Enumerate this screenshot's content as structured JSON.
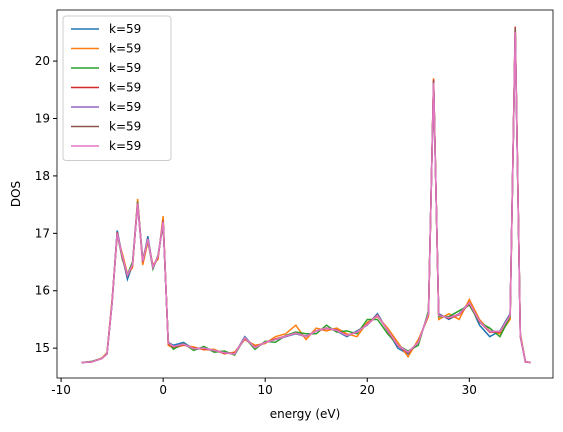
{
  "chart_data": {
    "type": "line",
    "xlabel": "energy (eV)",
    "ylabel": "DOS",
    "xlim": [
      -10.4,
      38.2
    ],
    "ylim": [
      14.48,
      20.89
    ],
    "xticks": [
      -10,
      0,
      10,
      20,
      30
    ],
    "yticks": [
      15,
      16,
      17,
      18,
      19,
      20
    ],
    "grid": false,
    "legend": "upper left",
    "x": [
      -8,
      -7,
      -6,
      -5.5,
      -5,
      -4.5,
      -4,
      -3.5,
      -3,
      -2.5,
      -2,
      -1.5,
      -1,
      -0.5,
      0,
      0.5,
      1,
      2,
      3,
      4,
      5,
      6,
      7,
      8,
      9,
      10,
      11,
      12,
      13,
      14,
      15,
      16,
      17,
      18,
      19,
      20,
      21,
      22,
      23,
      24,
      25,
      26,
      26.5,
      27,
      28,
      29,
      30,
      31,
      32,
      33,
      34,
      34.5,
      35,
      35.5,
      36
    ],
    "series": [
      {
        "name": "k=59",
        "color": "#1f77b4",
        "values": [
          14.75,
          14.76,
          14.82,
          14.9,
          15.8,
          17.05,
          16.6,
          16.2,
          16.45,
          17.5,
          16.5,
          16.95,
          16.4,
          16.6,
          17.2,
          15.1,
          15.05,
          15.1,
          14.98,
          15.0,
          14.95,
          14.92,
          14.9,
          15.2,
          15.0,
          15.1,
          15.15,
          15.2,
          15.25,
          15.2,
          15.3,
          15.35,
          15.3,
          15.2,
          15.3,
          15.4,
          15.6,
          15.3,
          15.0,
          14.9,
          15.1,
          15.6,
          19.6,
          15.6,
          15.5,
          15.6,
          15.8,
          15.4,
          15.2,
          15.3,
          15.6,
          20.5,
          15.2,
          14.76,
          14.75
        ]
      },
      {
        "name": "k=59",
        "color": "#ff7f0e",
        "values": [
          14.75,
          14.76,
          14.83,
          14.92,
          15.85,
          16.95,
          16.65,
          16.3,
          16.4,
          17.6,
          16.45,
          16.85,
          16.45,
          16.55,
          17.3,
          15.05,
          15.0,
          15.05,
          15.02,
          14.97,
          14.98,
          14.9,
          14.93,
          15.15,
          15.05,
          15.08,
          15.2,
          15.25,
          15.4,
          15.15,
          15.35,
          15.3,
          15.35,
          15.25,
          15.2,
          15.45,
          15.55,
          15.35,
          15.1,
          14.85,
          15.15,
          15.55,
          19.7,
          15.5,
          15.6,
          15.5,
          15.85,
          15.5,
          15.3,
          15.25,
          15.5,
          20.55,
          15.25,
          14.77,
          14.75
        ]
      },
      {
        "name": "k=59",
        "color": "#2ca02c",
        "values": [
          14.75,
          14.77,
          14.82,
          14.91,
          15.78,
          17.0,
          16.55,
          16.28,
          16.5,
          17.55,
          16.55,
          16.88,
          16.38,
          16.62,
          17.15,
          15.12,
          14.98,
          15.08,
          14.96,
          15.03,
          14.93,
          14.95,
          14.88,
          15.18,
          14.98,
          15.12,
          15.1,
          15.22,
          15.28,
          15.25,
          15.25,
          15.4,
          15.28,
          15.3,
          15.25,
          15.5,
          15.5,
          15.25,
          15.05,
          14.95,
          15.05,
          15.65,
          19.65,
          15.55,
          15.55,
          15.65,
          15.75,
          15.45,
          15.35,
          15.2,
          15.55,
          20.5,
          15.22,
          14.76,
          14.75
        ]
      },
      {
        "name": "k=59",
        "color": "#d62728",
        "values": [
          14.75,
          14.76,
          14.82,
          14.9,
          15.82,
          17.02,
          16.58,
          16.26,
          16.44,
          17.52,
          16.5,
          16.9,
          16.42,
          16.58,
          17.22,
          15.08,
          15.02,
          15.06,
          15.0,
          14.99,
          14.96,
          14.91,
          14.91,
          15.17,
          15.02,
          15.1,
          15.16,
          15.21,
          15.26,
          15.2,
          15.3,
          15.34,
          15.32,
          15.22,
          15.28,
          15.42,
          15.58,
          15.3,
          15.04,
          14.92,
          15.1,
          15.6,
          19.68,
          15.58,
          15.52,
          15.58,
          15.78,
          15.46,
          15.28,
          15.28,
          15.58,
          20.6,
          15.2,
          14.76,
          14.75
        ]
      },
      {
        "name": "k=59",
        "color": "#9467bd",
        "values": [
          14.75,
          14.76,
          14.82,
          14.9,
          15.8,
          17.0,
          16.6,
          16.27,
          16.46,
          17.53,
          16.52,
          16.9,
          16.4,
          16.6,
          17.2,
          15.1,
          15.03,
          15.07,
          14.99,
          15.0,
          14.96,
          14.92,
          14.9,
          15.18,
          15.01,
          15.1,
          15.15,
          15.2,
          15.26,
          15.21,
          15.3,
          15.35,
          15.31,
          15.22,
          15.28,
          15.41,
          15.57,
          15.31,
          15.05,
          14.93,
          15.1,
          15.6,
          19.64,
          15.57,
          15.53,
          15.59,
          15.79,
          15.47,
          15.29,
          15.29,
          15.57,
          20.52,
          15.21,
          14.76,
          14.75
        ]
      },
      {
        "name": "k=59",
        "color": "#8c564b",
        "values": [
          14.75,
          14.76,
          14.82,
          14.9,
          15.81,
          17.01,
          16.59,
          16.26,
          16.45,
          17.54,
          16.51,
          16.9,
          16.41,
          16.6,
          17.21,
          15.09,
          15.03,
          15.07,
          14.99,
          15.0,
          14.96,
          14.92,
          14.9,
          15.18,
          15.01,
          15.1,
          15.15,
          15.21,
          15.26,
          15.2,
          15.3,
          15.35,
          15.31,
          15.22,
          15.28,
          15.41,
          15.57,
          15.31,
          15.05,
          14.93,
          15.1,
          15.6,
          19.66,
          15.57,
          15.53,
          15.59,
          15.79,
          15.47,
          15.29,
          15.29,
          15.57,
          20.58,
          15.21,
          14.76,
          14.75
        ]
      },
      {
        "name": "k=59",
        "color": "#e377c2",
        "values": [
          14.75,
          14.76,
          14.82,
          14.9,
          15.8,
          17.0,
          16.6,
          16.27,
          16.45,
          17.52,
          16.51,
          16.9,
          16.41,
          16.6,
          17.2,
          15.09,
          15.03,
          15.07,
          14.99,
          15.0,
          14.96,
          14.92,
          14.9,
          15.18,
          15.01,
          15.1,
          15.15,
          15.21,
          15.26,
          15.2,
          15.3,
          15.35,
          15.31,
          15.22,
          15.28,
          15.41,
          15.57,
          15.31,
          15.05,
          14.93,
          15.1,
          15.6,
          19.62,
          15.57,
          15.53,
          15.59,
          15.79,
          15.47,
          15.29,
          15.29,
          15.57,
          20.5,
          15.21,
          14.76,
          14.75
        ]
      }
    ]
  }
}
